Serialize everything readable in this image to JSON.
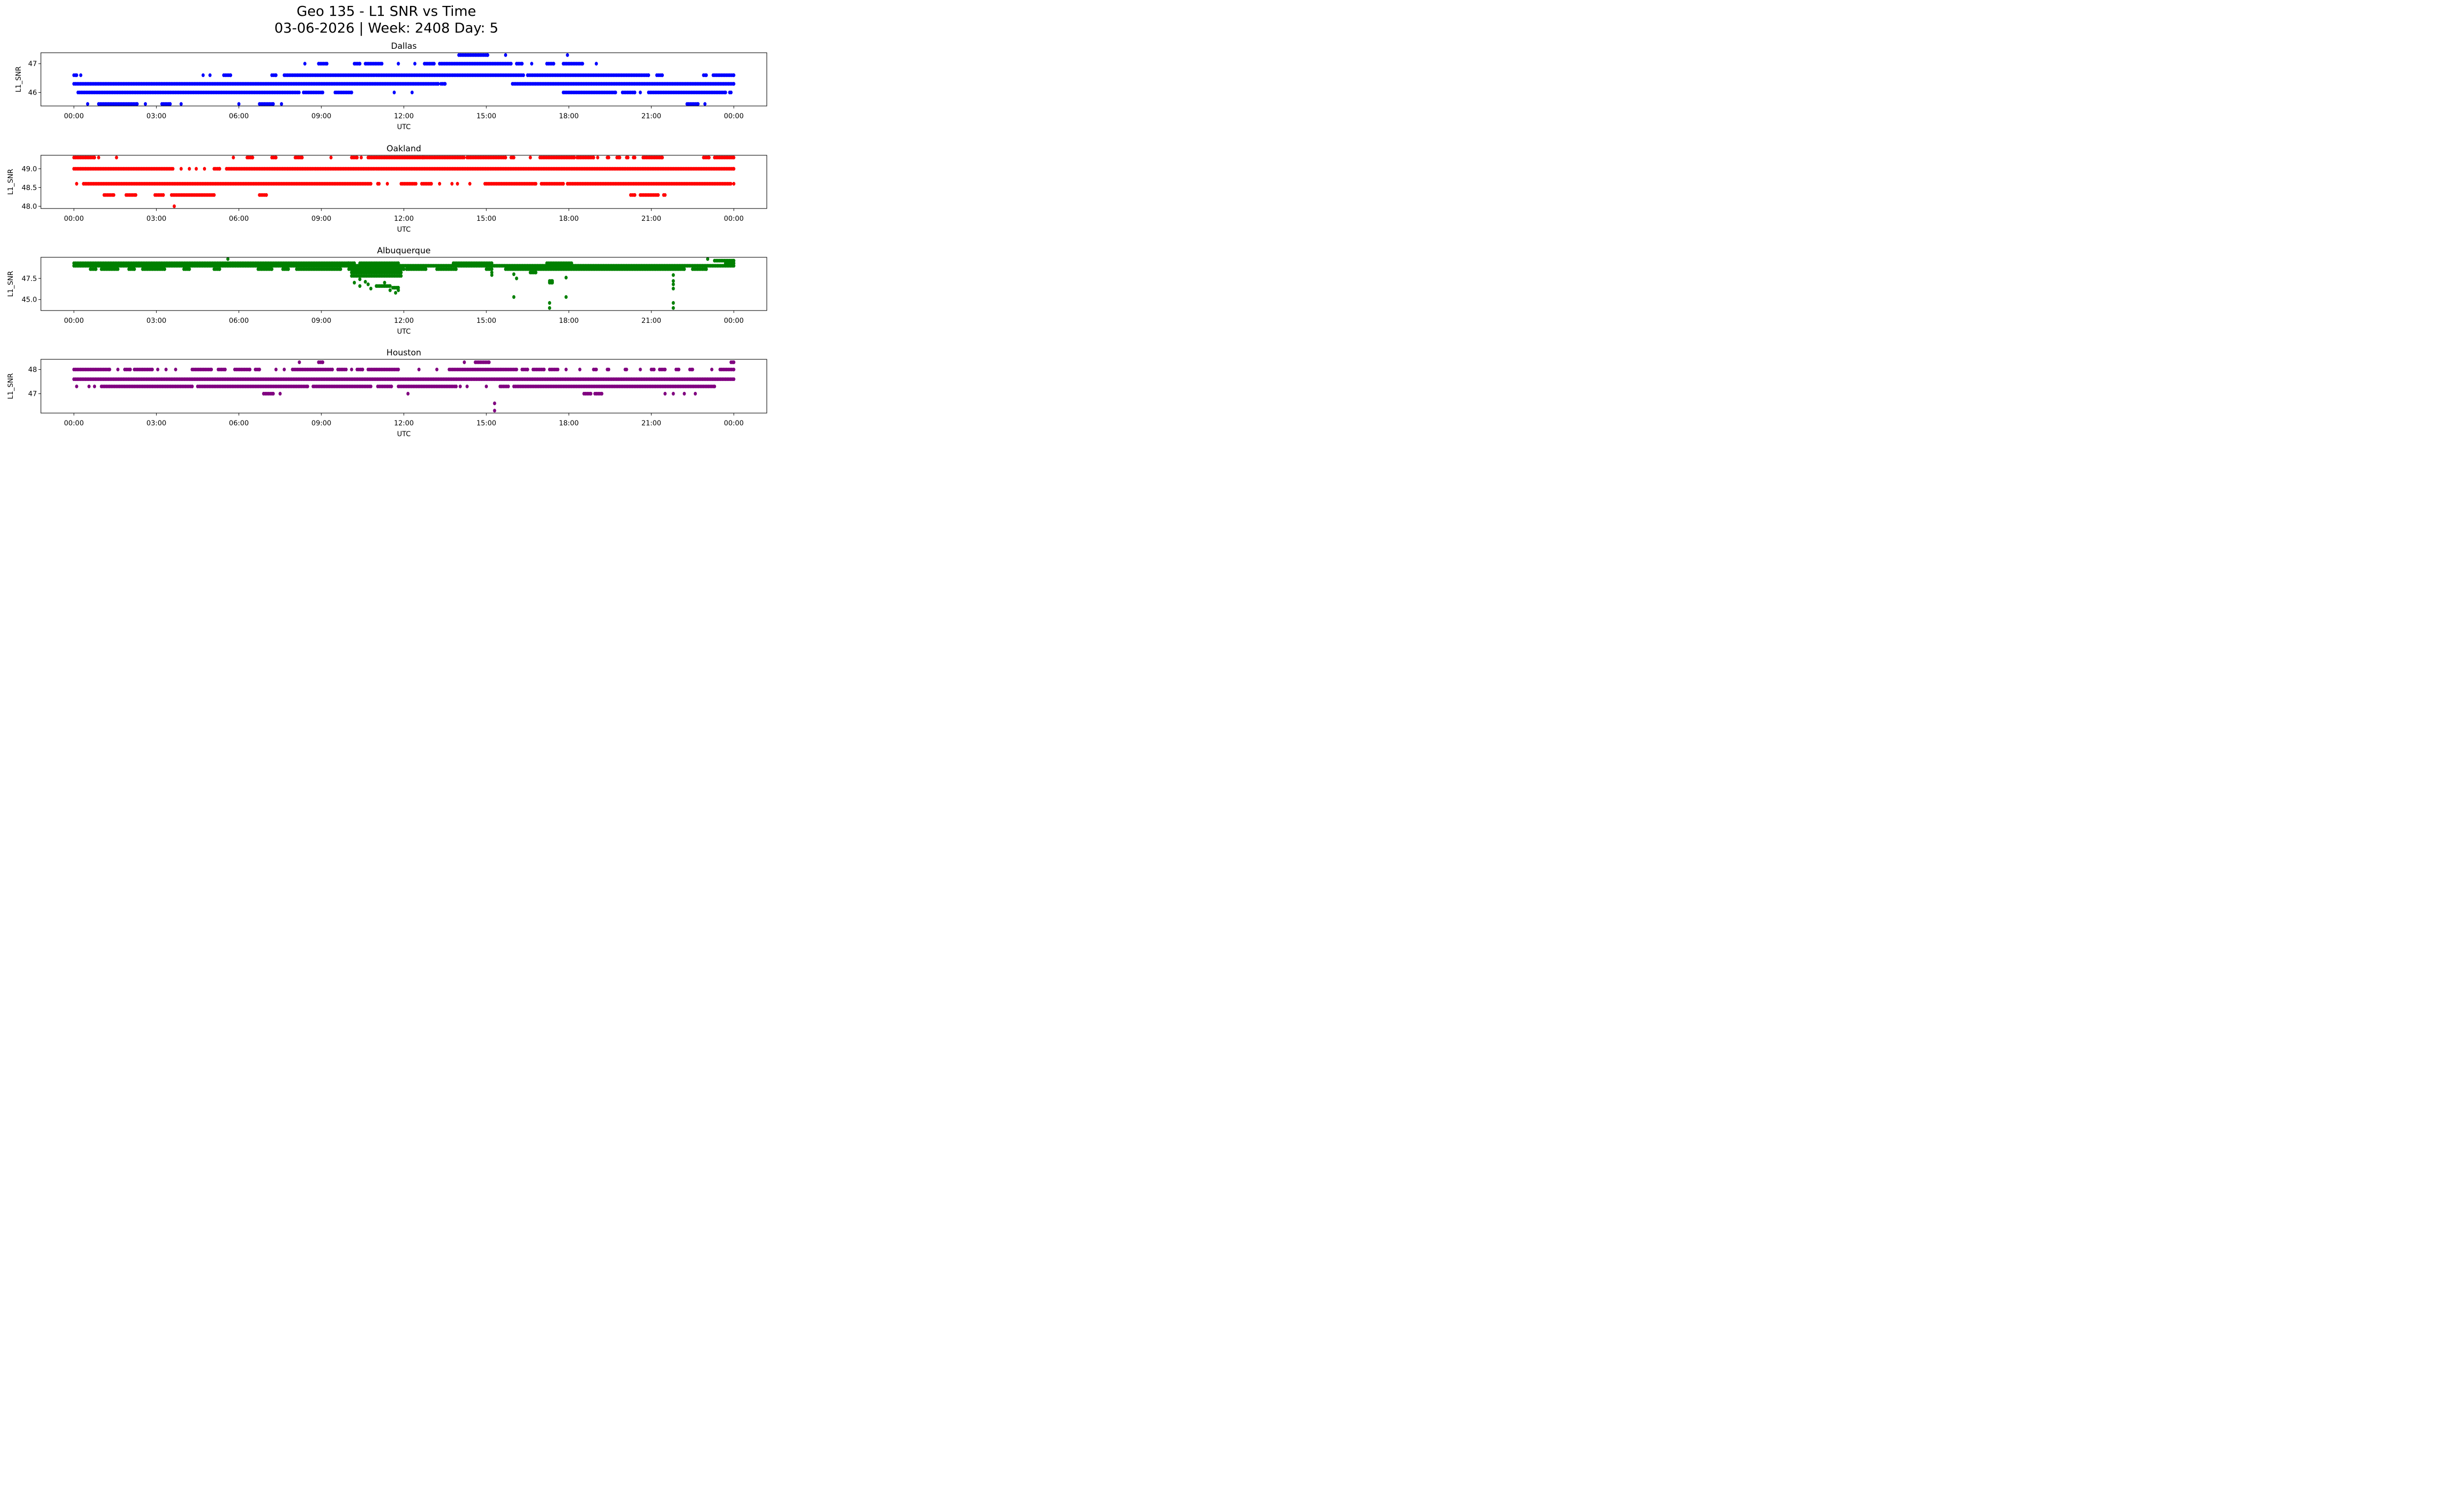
{
  "figure": {
    "title_line1": "Geo 135 - L1 SNR vs Time",
    "title_line2": "03-06-2026 | Week: 2408 Day: 5"
  },
  "chart_data": [
    {
      "type": "scatter",
      "title": "Dallas",
      "xlabel": "UTC",
      "ylabel": "L1_SNR",
      "color": "#0000ff",
      "xlim": [
        -1.2,
        25.2
      ],
      "ylim": [
        45.53,
        47.38
      ],
      "xticks": [
        "00:00",
        "03:00",
        "06:00",
        "09:00",
        "12:00",
        "15:00",
        "18:00",
        "21:00",
        "00:00"
      ],
      "xtick_hours": [
        0,
        3,
        6,
        9,
        12,
        15,
        18,
        21,
        24
      ],
      "yticks": [
        46,
        47
      ],
      "ytick_labels": [
        "46",
        "47"
      ],
      "runs": [
        [
          0,
          0.1,
          46.6
        ],
        [
          0.25,
          0.25,
          46.6
        ],
        [
          4.7,
          4.7,
          46.6
        ],
        [
          4.95,
          4.95,
          46.6
        ],
        [
          5.45,
          5.7,
          46.6
        ],
        [
          7.2,
          7.35,
          46.6
        ],
        [
          7.65,
          16.35,
          46.6
        ],
        [
          16.5,
          20.9,
          46.6
        ],
        [
          21.2,
          21.4,
          46.6
        ],
        [
          22.9,
          23.0,
          46.6
        ],
        [
          23.25,
          24,
          46.6
        ],
        [
          0,
          13.25,
          46.3
        ],
        [
          13.35,
          13.5,
          46.3
        ],
        [
          15.95,
          24,
          46.3
        ],
        [
          0.15,
          8.2,
          46.0
        ],
        [
          8.35,
          9.05,
          46.0
        ],
        [
          9.5,
          10.1,
          46.0
        ],
        [
          11.65,
          11.65,
          46.0
        ],
        [
          12.3,
          12.3,
          46.0
        ],
        [
          17.8,
          19.7,
          46.0
        ],
        [
          19.95,
          20.4,
          46.0
        ],
        [
          20.6,
          20.6,
          46.0
        ],
        [
          20.9,
          23.7,
          46.0
        ],
        [
          23.85,
          23.9,
          46.0
        ],
        [
          0.5,
          0.5,
          45.6
        ],
        [
          0.9,
          2.3,
          45.6
        ],
        [
          2.6,
          2.6,
          45.6
        ],
        [
          3.2,
          3.5,
          45.6
        ],
        [
          3.9,
          3.9,
          45.6
        ],
        [
          6.0,
          6.0,
          45.6
        ],
        [
          6.75,
          7.25,
          45.6
        ],
        [
          7.55,
          7.55,
          45.6
        ],
        [
          22.3,
          22.7,
          45.6
        ],
        [
          22.95,
          22.95,
          45.6
        ],
        [
          8.4,
          8.4,
          47.0
        ],
        [
          8.9,
          9.2,
          47.0
        ],
        [
          10.2,
          10.4,
          47.0
        ],
        [
          10.6,
          11.2,
          47.0
        ],
        [
          11.8,
          11.8,
          47.0
        ],
        [
          12.4,
          12.4,
          47.0
        ],
        [
          12.75,
          13.1,
          47.0
        ],
        [
          13.3,
          15.9,
          47.0
        ],
        [
          16.1,
          16.3,
          47.0
        ],
        [
          16.65,
          16.65,
          47.0
        ],
        [
          17.2,
          17.45,
          47.0
        ],
        [
          17.8,
          18.5,
          47.0
        ],
        [
          19.0,
          19.0,
          47.0
        ],
        [
          14.0,
          15.05,
          47.3
        ],
        [
          15.7,
          15.7,
          47.3
        ],
        [
          17.95,
          17.95,
          47.3
        ]
      ]
    },
    {
      "type": "scatter",
      "title": "Oakland",
      "xlabel": "UTC",
      "ylabel": "L1_SNR",
      "color": "#ff0000",
      "xlim": [
        -1.2,
        25.2
      ],
      "ylim": [
        47.94,
        49.36
      ],
      "xticks": [
        "00:00",
        "03:00",
        "06:00",
        "09:00",
        "12:00",
        "15:00",
        "18:00",
        "21:00",
        "00:00"
      ],
      "xtick_hours": [
        0,
        3,
        6,
        9,
        12,
        15,
        18,
        21,
        24
      ],
      "yticks": [
        48.0,
        48.5,
        49.0
      ],
      "ytick_labels": [
        "48.0",
        "48.5",
        "49.0"
      ],
      "runs": [
        [
          0,
          0.75,
          49.3
        ],
        [
          0.9,
          0.9,
          49.3
        ],
        [
          1.55,
          1.55,
          49.3
        ],
        [
          5.8,
          5.8,
          49.3
        ],
        [
          6.3,
          6.5,
          49.3
        ],
        [
          7.2,
          7.35,
          49.3
        ],
        [
          8.05,
          8.3,
          49.3
        ],
        [
          9.35,
          9.35,
          49.3
        ],
        [
          10.1,
          10.3,
          49.3
        ],
        [
          10.45,
          10.45,
          49.3
        ],
        [
          10.7,
          12.7,
          49.3
        ],
        [
          12.75,
          14.2,
          49.3
        ],
        [
          14.3,
          15.7,
          49.3
        ],
        [
          15.9,
          16.0,
          49.3
        ],
        [
          16.6,
          16.6,
          49.3
        ],
        [
          16.95,
          18.2,
          49.3
        ],
        [
          18.3,
          18.9,
          49.3
        ],
        [
          19.05,
          19.05,
          49.3
        ],
        [
          19.4,
          19.45,
          49.3
        ],
        [
          19.75,
          19.85,
          49.3
        ],
        [
          20.1,
          20.15,
          49.3
        ],
        [
          20.35,
          20.4,
          49.3
        ],
        [
          20.7,
          21.4,
          49.3
        ],
        [
          22.9,
          23.1,
          49.3
        ],
        [
          23.3,
          24,
          49.3
        ],
        [
          0,
          3.6,
          49.0
        ],
        [
          3.9,
          3.9,
          49.0
        ],
        [
          4.2,
          4.2,
          49.0
        ],
        [
          4.45,
          4.45,
          49.0
        ],
        [
          4.75,
          4.75,
          49.0
        ],
        [
          5.1,
          5.3,
          49.0
        ],
        [
          5.55,
          24,
          49.0
        ],
        [
          0.1,
          0.1,
          48.6
        ],
        [
          0.35,
          10.8,
          48.6
        ],
        [
          11.05,
          11.1,
          48.6
        ],
        [
          11.4,
          11.4,
          48.6
        ],
        [
          11.9,
          12.45,
          48.6
        ],
        [
          12.65,
          13.0,
          48.6
        ],
        [
          13.3,
          13.3,
          48.6
        ],
        [
          13.75,
          13.75,
          48.6
        ],
        [
          13.95,
          13.95,
          48.6
        ],
        [
          14.4,
          14.4,
          48.6
        ],
        [
          14.95,
          16.8,
          48.6
        ],
        [
          17.0,
          17.8,
          48.6
        ],
        [
          17.95,
          23.9,
          48.6
        ],
        [
          24,
          24,
          48.6
        ],
        [
          1.1,
          1.45,
          48.3
        ],
        [
          1.9,
          2.25,
          48.3
        ],
        [
          2.95,
          3.25,
          48.3
        ],
        [
          3.55,
          5.1,
          48.3
        ],
        [
          6.75,
          7.0,
          48.3
        ],
        [
          20.25,
          20.4,
          48.3
        ],
        [
          20.6,
          21.25,
          48.3
        ],
        [
          21.45,
          21.5,
          48.3
        ],
        [
          3.65,
          3.65,
          48.0
        ]
      ]
    },
    {
      "type": "scatter",
      "title": "Albuquerque",
      "xlabel": "UTC",
      "ylabel": "L1_SNR",
      "color": "#008000",
      "xlim": [
        -1.2,
        25.2
      ],
      "ylim": [
        43.7,
        50.0
      ],
      "xticks": [
        "00:00",
        "03:00",
        "06:00",
        "09:00",
        "12:00",
        "15:00",
        "18:00",
        "21:00",
        "00:00"
      ],
      "xtick_hours": [
        0,
        3,
        6,
        9,
        12,
        15,
        18,
        21,
        24
      ],
      "yticks": [
        45.0,
        47.5
      ],
      "ytick_labels": [
        "45.0",
        "47.5"
      ],
      "runs": [
        [
          0,
          10.0,
          49.3
        ],
        [
          10.0,
          10.2,
          49.3
        ],
        [
          10.4,
          11.8,
          49.3
        ],
        [
          13.8,
          15.2,
          49.3
        ],
        [
          17.2,
          18.1,
          49.3
        ],
        [
          23.7,
          24,
          49.3
        ],
        [
          5.6,
          5.6,
          49.8
        ],
        [
          23.05,
          23.05,
          49.8
        ],
        [
          23.3,
          24,
          49.6
        ],
        [
          0,
          24,
          49.0
        ],
        [
          0.6,
          0.8,
          48.6
        ],
        [
          1.0,
          1.6,
          48.6
        ],
        [
          2.0,
          2.2,
          48.6
        ],
        [
          2.5,
          3.3,
          48.6
        ],
        [
          4.0,
          4.2,
          48.6
        ],
        [
          5.1,
          5.3,
          48.6
        ],
        [
          6.7,
          7.2,
          48.6
        ],
        [
          7.6,
          7.8,
          48.6
        ],
        [
          8.1,
          9.7,
          48.6
        ],
        [
          10.0,
          12.0,
          48.6
        ],
        [
          12.1,
          12.8,
          48.6
        ],
        [
          13.2,
          13.9,
          48.6
        ],
        [
          15.0,
          15.2,
          48.6
        ],
        [
          15.7,
          22.2,
          48.6
        ],
        [
          22.5,
          23.0,
          48.6
        ],
        [
          10.1,
          11.9,
          48.2
        ],
        [
          10.1,
          11.9,
          47.8
        ],
        [
          15.2,
          15.2,
          48.2
        ],
        [
          15.2,
          15.2,
          47.9
        ],
        [
          16.0,
          16.0,
          48.0
        ],
        [
          16.1,
          16.1,
          47.5
        ],
        [
          16.6,
          16.8,
          48.2
        ],
        [
          17.3,
          17.4,
          47.2
        ],
        [
          17.3,
          17.4,
          47.0
        ],
        [
          17.9,
          17.9,
          47.6
        ],
        [
          21.8,
          21.8,
          47.9
        ],
        [
          21.8,
          21.8,
          47.2
        ],
        [
          21.8,
          21.8,
          46.8
        ],
        [
          10.2,
          10.2,
          47.0
        ],
        [
          10.4,
          10.4,
          47.4
        ],
        [
          10.6,
          10.6,
          47.1
        ],
        [
          10.7,
          10.7,
          46.8
        ],
        [
          10.4,
          10.4,
          46.6
        ],
        [
          10.8,
          10.8,
          46.3
        ],
        [
          11.0,
          11.5,
          46.6
        ],
        [
          11.3,
          11.3,
          47.0
        ],
        [
          11.6,
          11.8,
          46.4
        ],
        [
          11.5,
          11.5,
          46.1
        ],
        [
          11.7,
          11.7,
          45.8
        ],
        [
          11.8,
          11.8,
          46.1
        ],
        [
          16.0,
          16.0,
          45.3
        ],
        [
          17.3,
          17.3,
          44.6
        ],
        [
          17.3,
          17.3,
          44.0
        ],
        [
          17.9,
          17.9,
          45.3
        ],
        [
          21.8,
          21.8,
          44.6
        ],
        [
          21.8,
          21.8,
          44.0
        ],
        [
          21.8,
          21.8,
          46.3
        ]
      ]
    },
    {
      "type": "scatter",
      "title": "Houston",
      "xlabel": "UTC",
      "ylabel": "L1_SNR",
      "color": "#800080",
      "xlim": [
        -1.2,
        25.2
      ],
      "ylim": [
        46.2,
        48.42
      ],
      "xticks": [
        "00:00",
        "03:00",
        "06:00",
        "09:00",
        "12:00",
        "15:00",
        "18:00",
        "21:00",
        "00:00"
      ],
      "xtick_hours": [
        0,
        3,
        6,
        9,
        12,
        15,
        18,
        21,
        24
      ],
      "yticks": [
        47,
        48
      ],
      "ytick_labels": [
        "47",
        "48"
      ],
      "runs": [
        [
          8.2,
          8.2,
          48.3
        ],
        [
          8.9,
          9.05,
          48.3
        ],
        [
          14.2,
          14.2,
          48.3
        ],
        [
          14.6,
          15.1,
          48.3
        ],
        [
          23.9,
          24,
          48.3
        ],
        [
          0,
          1.3,
          48.0
        ],
        [
          1.6,
          1.6,
          48.0
        ],
        [
          1.85,
          2.05,
          48.0
        ],
        [
          2.2,
          2.85,
          48.0
        ],
        [
          3.05,
          3.05,
          48.0
        ],
        [
          3.35,
          3.35,
          48.0
        ],
        [
          3.7,
          3.7,
          48.0
        ],
        [
          4.3,
          5.0,
          48.0
        ],
        [
          5.25,
          5.5,
          48.0
        ],
        [
          5.85,
          6.4,
          48.0
        ],
        [
          6.6,
          6.75,
          48.0
        ],
        [
          7.35,
          7.35,
          48.0
        ],
        [
          7.65,
          7.65,
          48.0
        ],
        [
          7.95,
          9.4,
          48.0
        ],
        [
          9.6,
          9.9,
          48.0
        ],
        [
          10.1,
          10.1,
          48.0
        ],
        [
          10.3,
          10.5,
          48.0
        ],
        [
          10.7,
          11.8,
          48.0
        ],
        [
          12.55,
          12.55,
          48.0
        ],
        [
          13.2,
          13.2,
          48.0
        ],
        [
          13.65,
          16.1,
          48.0
        ],
        [
          16.3,
          16.5,
          48.0
        ],
        [
          16.7,
          17.1,
          48.0
        ],
        [
          17.3,
          17.6,
          48.0
        ],
        [
          17.9,
          17.9,
          48.0
        ],
        [
          18.4,
          18.4,
          48.0
        ],
        [
          18.9,
          19.0,
          48.0
        ],
        [
          19.4,
          19.45,
          48.0
        ],
        [
          20.05,
          20.1,
          48.0
        ],
        [
          20.6,
          20.6,
          48.0
        ],
        [
          21.0,
          21.1,
          48.0
        ],
        [
          21.3,
          21.5,
          48.0
        ],
        [
          21.9,
          22.0,
          48.0
        ],
        [
          22.4,
          22.5,
          48.0
        ],
        [
          23.2,
          23.2,
          48.0
        ],
        [
          23.5,
          24,
          48.0
        ],
        [
          0,
          24,
          47.6
        ],
        [
          0.1,
          0.1,
          47.3
        ],
        [
          0.55,
          0.55,
          47.3
        ],
        [
          0.75,
          0.75,
          47.3
        ],
        [
          1.0,
          4.3,
          47.3
        ],
        [
          4.5,
          8.5,
          47.3
        ],
        [
          8.7,
          10.8,
          47.3
        ],
        [
          11.05,
          11.55,
          47.3
        ],
        [
          11.8,
          13.9,
          47.3
        ],
        [
          14.05,
          14.05,
          47.3
        ],
        [
          14.3,
          14.3,
          47.3
        ],
        [
          15.0,
          15.0,
          47.3
        ],
        [
          15.5,
          15.8,
          47.3
        ],
        [
          16.0,
          23.3,
          47.3
        ],
        [
          6.9,
          7.25,
          47.0
        ],
        [
          7.5,
          7.5,
          47.0
        ],
        [
          12.15,
          12.15,
          47.0
        ],
        [
          18.55,
          18.8,
          47.0
        ],
        [
          18.95,
          19.2,
          47.0
        ],
        [
          21.5,
          21.5,
          47.0
        ],
        [
          21.8,
          21.8,
          47.0
        ],
        [
          22.2,
          22.2,
          47.0
        ],
        [
          22.6,
          22.6,
          47.0
        ],
        [
          15.3,
          15.3,
          46.6
        ],
        [
          15.3,
          15.3,
          46.3
        ]
      ]
    }
  ]
}
